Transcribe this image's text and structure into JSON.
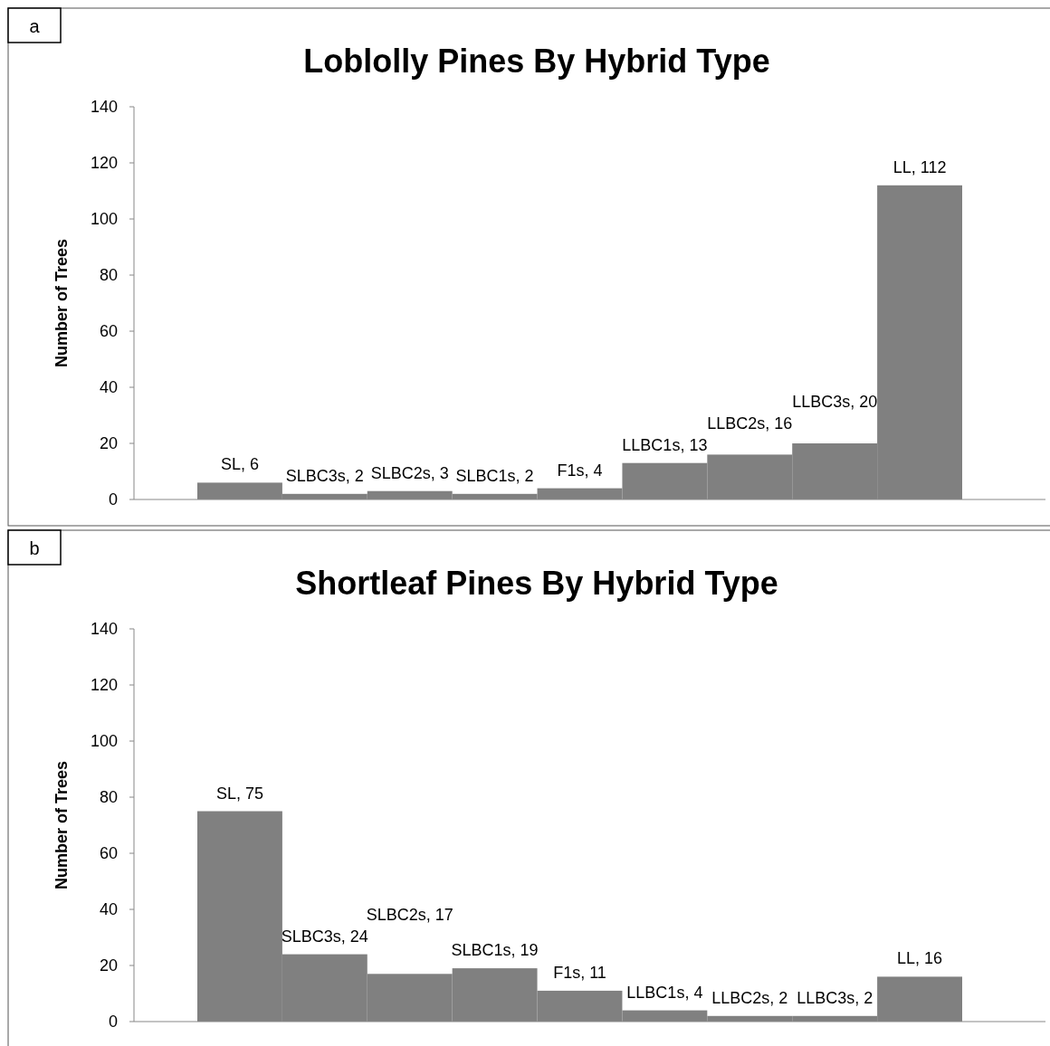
{
  "chart_data": [
    {
      "type": "bar",
      "title": "Loblolly Pines By Hybrid Type",
      "ylabel": "Number of Trees",
      "annotations": [
        "a"
      ],
      "categories": [
        null,
        null,
        null,
        null,
        null,
        null,
        null,
        null,
        null
      ],
      "values": [
        6,
        2,
        3,
        2,
        4,
        13,
        16,
        20,
        112
      ],
      "value_labels": [
        "SL, 6",
        "SLBC3s, 2",
        "SLBC2s, 3",
        "SLBC1s, 2",
        "F1s, 4",
        "LLBC1s, 13",
        "LLBC2s, 16",
        "LLBC3s, 20",
        "LL, 112"
      ],
      "color": "#808080",
      "ylim": [
        0,
        140
      ],
      "yticks": [
        0,
        20,
        40,
        60,
        80,
        100,
        120,
        140
      ],
      "grid": false
    },
    {
      "type": "bar",
      "title": "Shortleaf Pines By Hybrid Type",
      "ylabel": "Number of Trees",
      "annotations": [
        "b"
      ],
      "categories": [
        null,
        null,
        null,
        null,
        null,
        null,
        null,
        null,
        null
      ],
      "values": [
        75,
        24,
        17,
        19,
        11,
        4,
        2,
        2,
        16
      ],
      "value_labels": [
        "SL, 75",
        "SLBC3s, 24",
        "SLBC2s, 17",
        "SLBC1s, 19",
        "F1s, 11",
        "LLBC1s, 4",
        "LLBC2s, 2",
        "LLBC3s, 2",
        "LL, 16"
      ],
      "color": "#808080",
      "ylim": [
        0,
        140
      ],
      "yticks": [
        0,
        20,
        40,
        60,
        80,
        100,
        120,
        140
      ],
      "grid": false
    }
  ]
}
